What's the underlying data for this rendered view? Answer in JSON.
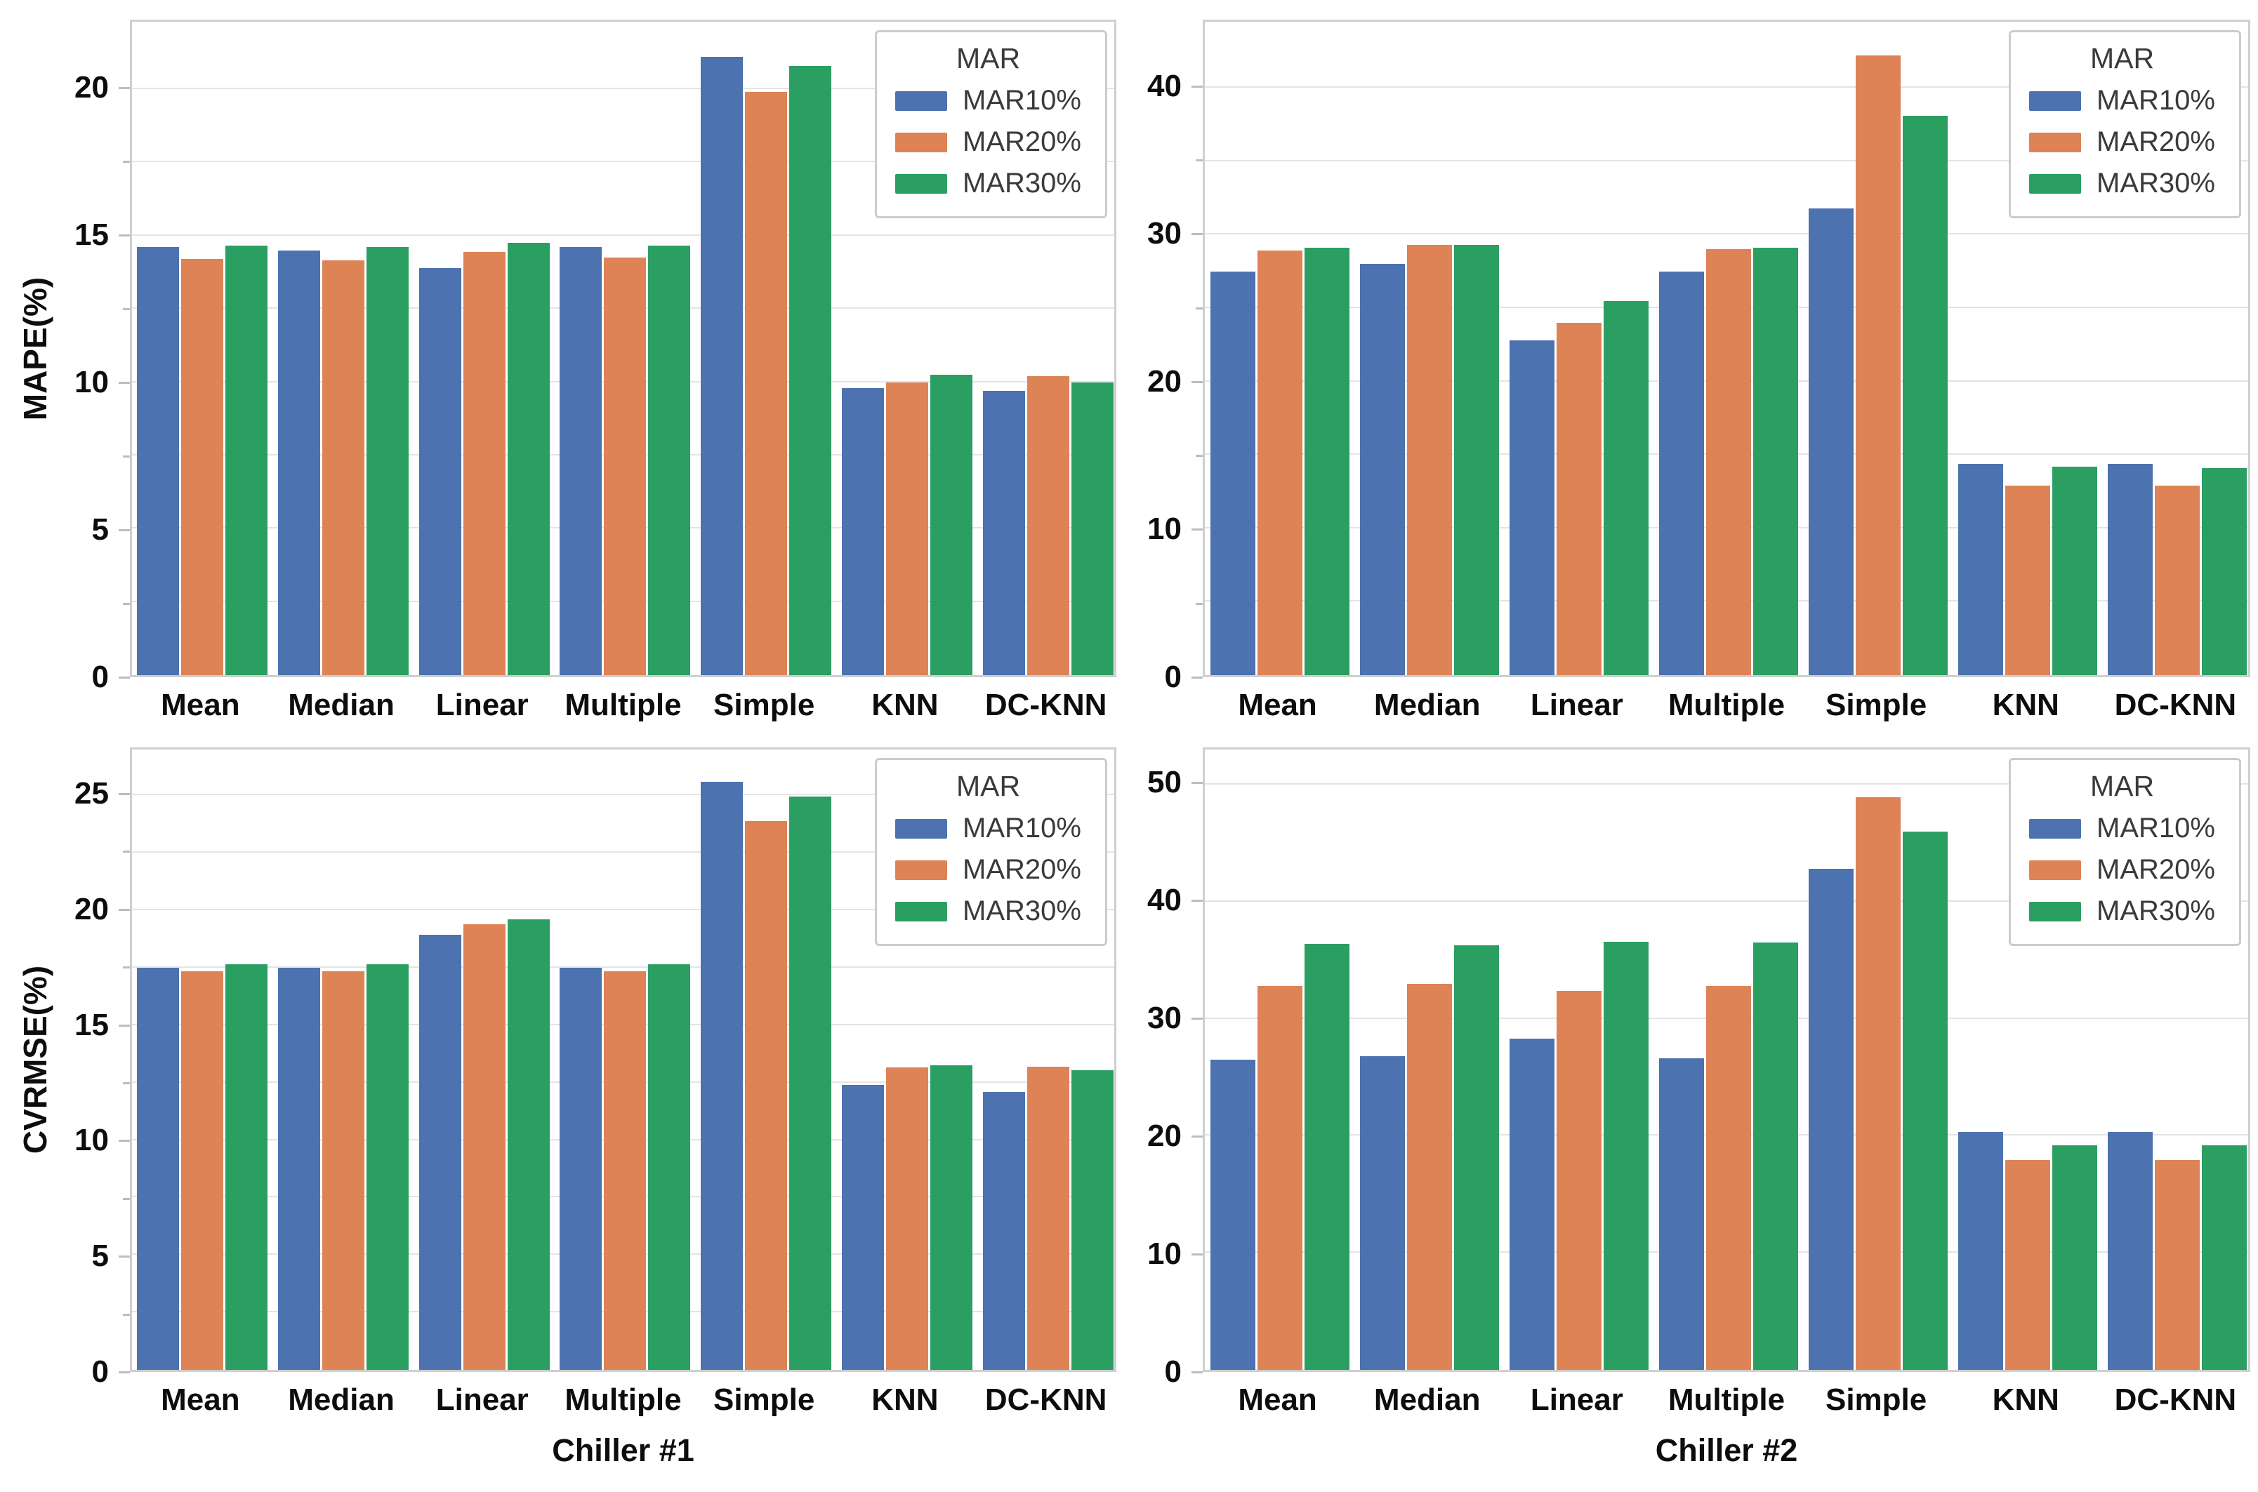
{
  "palette": {
    "MAR10%": "#4C72B0",
    "MAR20%": "#DD8355",
    "MAR30%": "#2B9E62"
  },
  "legend": {
    "title": "MAR",
    "entries": [
      "MAR10%",
      "MAR20%",
      "MAR30%"
    ]
  },
  "chart_data": [
    {
      "type": "bar",
      "title": "",
      "ylabel": "MAPE(%)",
      "xlabel": "",
      "categories": [
        "Mean",
        "Median",
        "Linear",
        "Multiple",
        "Simple",
        "KNN",
        "DC-KNN"
      ],
      "series": [
        {
          "name": "MAR10%",
          "values": [
            14.6,
            14.5,
            13.9,
            14.6,
            21.1,
            9.8,
            9.7
          ]
        },
        {
          "name": "MAR20%",
          "values": [
            14.2,
            14.15,
            14.45,
            14.25,
            19.9,
            10.0,
            10.2
          ]
        },
        {
          "name": "MAR30%",
          "values": [
            14.65,
            14.6,
            14.75,
            14.65,
            20.8,
            10.25,
            10.0
          ]
        }
      ],
      "ylim": [
        0,
        22.3
      ],
      "yticks": [
        0,
        5,
        10,
        15,
        20
      ],
      "grid_step": 2.5,
      "grid": true,
      "legend_position": "top-right"
    },
    {
      "type": "bar",
      "title": "",
      "ylabel": "",
      "xlabel": "",
      "categories": [
        "Mean",
        "Median",
        "Linear",
        "Multiple",
        "Simple",
        "KNN",
        "DC-KNN"
      ],
      "series": [
        {
          "name": "MAR10%",
          "values": [
            27.5,
            28.0,
            22.8,
            27.5,
            31.8,
            14.4,
            14.4
          ]
        },
        {
          "name": "MAR20%",
          "values": [
            28.9,
            29.3,
            24.0,
            29.0,
            42.2,
            12.9,
            12.9
          ]
        },
        {
          "name": "MAR30%",
          "values": [
            29.1,
            29.3,
            25.5,
            29.1,
            38.1,
            14.2,
            14.1
          ]
        }
      ],
      "ylim": [
        0,
        44.5
      ],
      "yticks": [
        0,
        10,
        20,
        30,
        40
      ],
      "grid_step": 5,
      "grid": true,
      "legend_position": "top-right"
    },
    {
      "type": "bar",
      "title": "",
      "ylabel": "CVRMSE(%)",
      "xlabel": "Chiller #1",
      "categories": [
        "Mean",
        "Median",
        "Linear",
        "Multiple",
        "Simple",
        "KNN",
        "DC-KNN"
      ],
      "series": [
        {
          "name": "MAR10%",
          "values": [
            17.5,
            17.5,
            18.95,
            17.5,
            25.6,
            12.4,
            12.1
          ]
        },
        {
          "name": "MAR20%",
          "values": [
            17.35,
            17.35,
            19.4,
            17.35,
            23.9,
            13.15,
            13.2
          ]
        },
        {
          "name": "MAR30%",
          "values": [
            17.65,
            17.65,
            19.6,
            17.65,
            24.95,
            13.25,
            13.05
          ]
        }
      ],
      "ylim": [
        0,
        27
      ],
      "yticks": [
        0,
        5,
        10,
        15,
        20,
        25
      ],
      "grid_step": 2.5,
      "grid": true,
      "legend_position": "top-right"
    },
    {
      "type": "bar",
      "title": "",
      "ylabel": "",
      "xlabel": "Chiller #2",
      "categories": [
        "Mean",
        "Median",
        "Linear",
        "Multiple",
        "Simple",
        "KNN",
        "DC-KNN"
      ],
      "series": [
        {
          "name": "MAR10%",
          "values": [
            26.5,
            26.8,
            28.3,
            26.6,
            42.8,
            20.3,
            20.3
          ]
        },
        {
          "name": "MAR20%",
          "values": [
            32.8,
            33.0,
            32.4,
            32.8,
            48.9,
            17.9,
            17.9
          ]
        },
        {
          "name": "MAR30%",
          "values": [
            36.4,
            36.3,
            36.6,
            36.5,
            46.0,
            19.2,
            19.2
          ]
        }
      ],
      "ylim": [
        0,
        53
      ],
      "yticks": [
        0,
        10,
        20,
        30,
        40,
        50
      ],
      "grid_step": 10,
      "grid": true,
      "legend_position": "top-right"
    }
  ]
}
